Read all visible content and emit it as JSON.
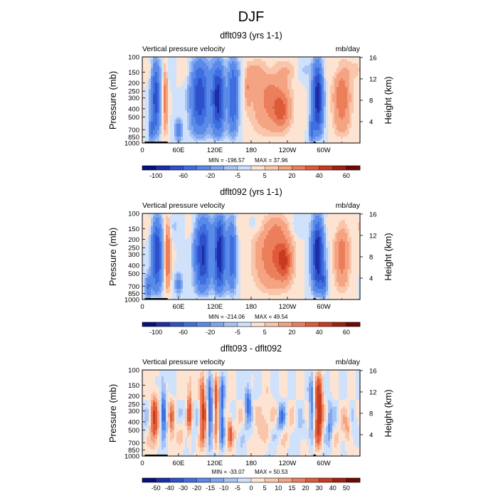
{
  "figure": {
    "title": "DJF"
  },
  "chart_data": [
    {
      "type": "heatmap",
      "title": "dflt093 (yrs 1-1)",
      "left_header": "Vertical pressure velocity",
      "right_header": "mb/day",
      "ylabel": "Pressure (mb)",
      "ylabel_right": "Height (km)",
      "x_ticks": [
        "0",
        "60E",
        "120E",
        "180",
        "120W",
        "60W"
      ],
      "y_ticks": [
        "100",
        "150",
        "200",
        "250",
        "300",
        "400",
        "500",
        "700",
        "850",
        "1000"
      ],
      "y_right_ticks": [
        "16",
        "12",
        "8",
        "4"
      ],
      "stats": {
        "min_label": "MIN = -196.57",
        "max_label": "MAX = 37.96"
      },
      "colorbar_labels": [
        "-100",
        "-60",
        "-20",
        "-5",
        "5",
        "20",
        "40",
        "60"
      ],
      "colorbar_levels": [
        -120,
        -100,
        -80,
        -60,
        -40,
        -20,
        -10,
        -5,
        0,
        5,
        10,
        20,
        30,
        40,
        50,
        60,
        70
      ]
    },
    {
      "type": "heatmap",
      "title": "dflt092 (yrs 1-1)",
      "left_header": "Vertical pressure velocity",
      "right_header": "mb/day",
      "ylabel": "Pressure (mb)",
      "ylabel_right": "Height (km)",
      "x_ticks": [
        "0",
        "60E",
        "120E",
        "180",
        "120W",
        "60W"
      ],
      "y_ticks": [
        "100",
        "150",
        "200",
        "250",
        "300",
        "400",
        "500",
        "700",
        "850",
        "1000"
      ],
      "y_right_ticks": [
        "16",
        "12",
        "8",
        "4"
      ],
      "stats": {
        "min_label": "MIN = -214.06",
        "max_label": "MAX = 49.54"
      },
      "colorbar_labels": [
        "-100",
        "-60",
        "-20",
        "-5",
        "5",
        "20",
        "40",
        "60"
      ],
      "colorbar_levels": [
        -120,
        -100,
        -80,
        -60,
        -40,
        -20,
        -10,
        -5,
        0,
        5,
        10,
        20,
        30,
        40,
        50,
        60,
        70
      ]
    },
    {
      "type": "heatmap",
      "title": "dflt093 - dflt092",
      "left_header": "Vertical pressure velocity",
      "right_header": "mb/day",
      "ylabel": "Pressure (mb)",
      "ylabel_right": "Height (km)",
      "x_ticks": [
        "0",
        "60E",
        "120E",
        "180",
        "120W",
        "60W"
      ],
      "y_ticks": [
        "100",
        "150",
        "200",
        "250",
        "300",
        "400",
        "500",
        "700",
        "850",
        "1000"
      ],
      "y_right_ticks": [
        "16",
        "12",
        "8",
        "4"
      ],
      "stats": {
        "min_label": "MIN = -33.07",
        "max_label": "MAX = 50.53"
      },
      "colorbar_labels": [
        "-50",
        "-40",
        "-30",
        "-20",
        "-15",
        "-10",
        "-5",
        "0",
        "5",
        "10",
        "15",
        "20",
        "30",
        "40",
        "50"
      ],
      "colorbar_levels": [
        -60,
        -50,
        -40,
        -30,
        -20,
        -15,
        -10,
        -5,
        0,
        5,
        10,
        15,
        20,
        30,
        40,
        50,
        60
      ]
    }
  ],
  "colors": {
    "colormap": [
      "#08107a",
      "#1b2ea8",
      "#2e50c9",
      "#3e6ee0",
      "#5a8ae8",
      "#7fa6ee",
      "#a8c4f4",
      "#d0e2fb",
      "#fde4d2",
      "#f9c6ab",
      "#f4a483",
      "#ec7f5b",
      "#de5a38",
      "#c73a1f",
      "#a11f10",
      "#6e0a05"
    ],
    "terrain": "#000000"
  }
}
